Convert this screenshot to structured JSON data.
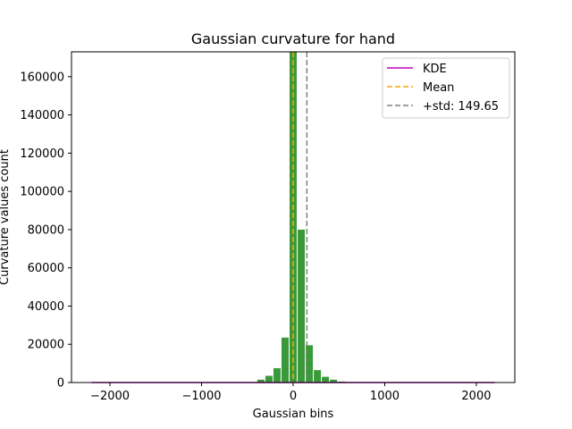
{
  "chart_data": {
    "type": "bar",
    "title": "Gaussian curvature for hand",
    "xlabel": "Gaussian bins",
    "ylabel": "Curvature values count",
    "xlim": [
      -2420,
      2420
    ],
    "ylim": [
      0,
      173000
    ],
    "xticks": [
      -2000,
      -1000,
      0,
      1000,
      2000
    ],
    "xtick_labels": [
      "−2000",
      "−1000",
      "0",
      "1000",
      "2000"
    ],
    "yticks": [
      0,
      20000,
      40000,
      60000,
      80000,
      100000,
      120000,
      140000,
      160000
    ],
    "ytick_labels": [
      "0",
      "20000",
      "40000",
      "60000",
      "80000",
      "100000",
      "120000",
      "140000",
      "160000"
    ],
    "bin_width": 88,
    "bins": [
      {
        "x": -440,
        "count": 200
      },
      {
        "x": -352,
        "count": 1500
      },
      {
        "x": -264,
        "count": 3500
      },
      {
        "x": -176,
        "count": 7500
      },
      {
        "x": -88,
        "count": 23500
      },
      {
        "x": 0,
        "count": 173000
      },
      {
        "x": 88,
        "count": 80000
      },
      {
        "x": 176,
        "count": 19500
      },
      {
        "x": 264,
        "count": 6500
      },
      {
        "x": 352,
        "count": 3000
      },
      {
        "x": 440,
        "count": 1500
      },
      {
        "x": 528,
        "count": 500
      }
    ],
    "bar_color": "#3a9a3a",
    "kde": {
      "x_min": -2200,
      "x_max": 2200,
      "value": 0,
      "color": "#bf00bf"
    },
    "mean": {
      "value": 0,
      "color": "#ffa500"
    },
    "std_line": {
      "value": 149.65,
      "color": "#808080"
    },
    "legend": {
      "placement": "upper right",
      "entries": [
        {
          "key": "kde",
          "label": "KDE",
          "color": "#bf00bf",
          "style": "solid"
        },
        {
          "key": "mean",
          "label": "Mean",
          "color": "#ffa500",
          "style": "dashed"
        },
        {
          "key": "std",
          "label": "+std: 149.65",
          "color": "#808080",
          "style": "dashed"
        }
      ]
    }
  }
}
